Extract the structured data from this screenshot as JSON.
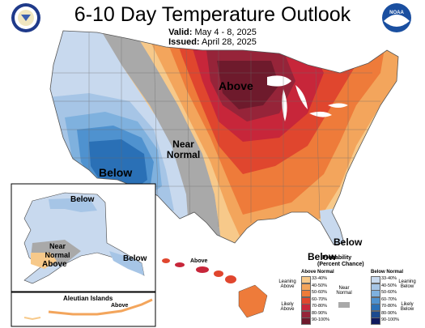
{
  "header": {
    "title": "6-10 Day Temperature Outlook",
    "valid_label": "Valid:",
    "valid_value": "May 4 - 8, 2025",
    "issued_label": "Issued:",
    "issued_value": "April 28, 2025"
  },
  "map_labels": {
    "above_main": "Above",
    "below_sw": "Below",
    "near_normal": "Near Normal",
    "below_fl_1": "Below",
    "below_fl_2": "Below",
    "ak_below": "Below",
    "ak_near_normal": "Near Normal",
    "ak_above": "Above",
    "ak_below_se": "Below",
    "aleutian": "Aleutian Islands",
    "aleutian_above": "Above",
    "hawaii_above": "Above"
  },
  "legend": {
    "title": "Probability",
    "subtitle": "(Percent Chance)",
    "above_header": "Above Normal",
    "below_header": "Below Normal",
    "near_normal": "Near Normal",
    "leaning_above": "Leaning Above",
    "likely_above": "Likely Above",
    "leaning_below": "Leaning Below",
    "likely_below": "Likely Below",
    "above_bins": [
      "33-40%",
      "40-50%",
      "50-60%",
      "60-70%",
      "70-80%",
      "80-90%",
      "90-100%"
    ],
    "below_bins": [
      "33-40%",
      "40-50%",
      "50-60%",
      "60-70%",
      "70-80%",
      "80-90%",
      "90-100%"
    ],
    "above_colors": [
      "#f7c98a",
      "#f3a55c",
      "#ee7b3a",
      "#e0462e",
      "#c7263a",
      "#962439",
      "#6e1a2c"
    ],
    "below_colors": [
      "#c8d9ee",
      "#a6c5e6",
      "#7fb1de",
      "#4f92cf",
      "#2a70b6",
      "#1c4a8f",
      "#101a5e"
    ],
    "near_color": "#a9a9a9"
  },
  "logos": {
    "left": "Department of Commerce seal",
    "right": "NOAA"
  }
}
